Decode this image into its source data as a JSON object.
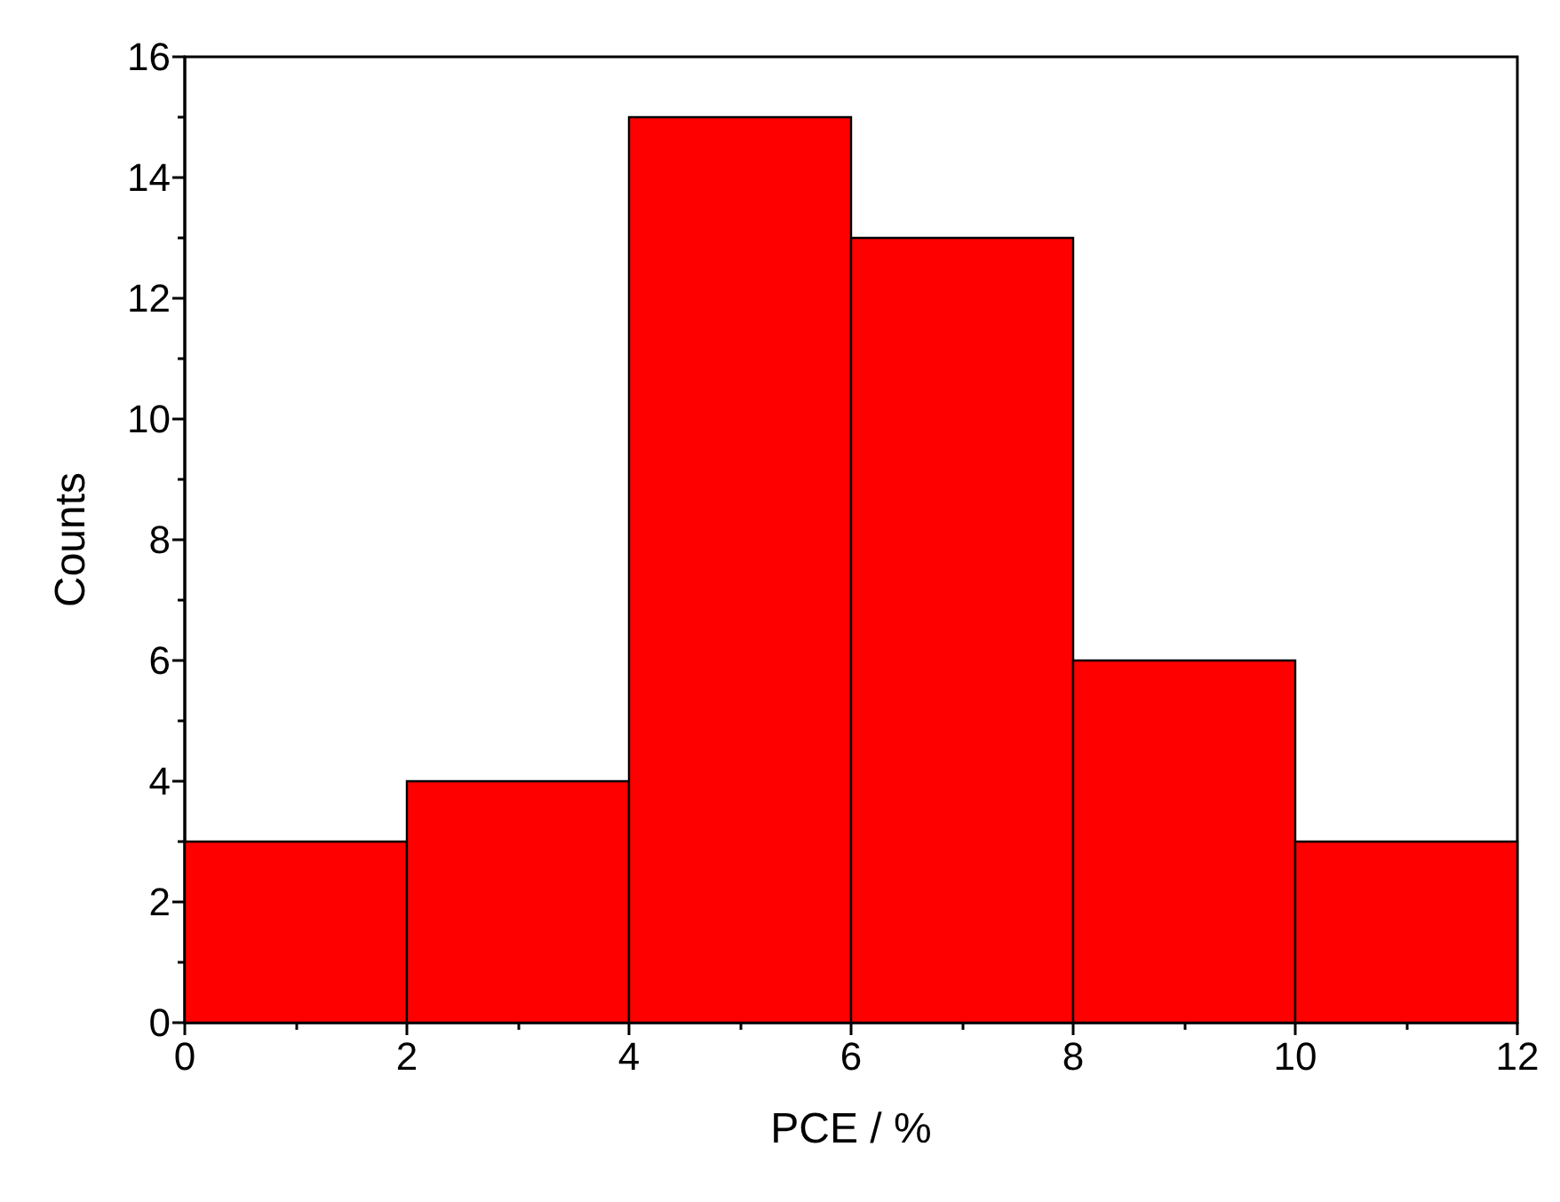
{
  "chart_data": {
    "type": "histogram",
    "xlabel": "PCE / %",
    "ylabel": "Counts",
    "bins": [
      0,
      2,
      4,
      6,
      8,
      10,
      12
    ],
    "values": [
      3,
      4,
      15,
      13,
      6,
      3
    ],
    "color": "#ff0000",
    "xlim": [
      0,
      12
    ],
    "xticks": [
      0,
      2,
      4,
      6,
      8,
      10,
      12
    ],
    "ylim": [
      0,
      16
    ],
    "yticks": [
      0,
      2,
      4,
      6,
      8,
      10,
      12,
      14,
      16
    ]
  }
}
